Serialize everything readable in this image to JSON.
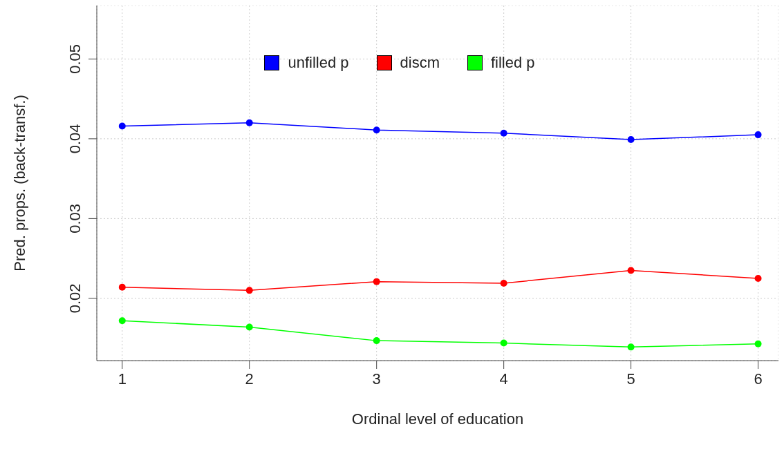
{
  "chart_data": {
    "type": "line",
    "xlabel": "Ordinal level of education",
    "ylabel": "Pred. props. (back-transf.)",
    "x": [
      1,
      2,
      3,
      4,
      5,
      6
    ],
    "xlim": [
      0.8,
      6.16
    ],
    "xticks": [
      1,
      2,
      3,
      4,
      5,
      6
    ],
    "ylim": [
      0.0122,
      0.0567
    ],
    "yticks": [
      0.02,
      0.03,
      0.04,
      0.05
    ],
    "grid": true,
    "legend": "top",
    "marker": "circle",
    "line_style": "solid",
    "series": [
      {
        "name": "unfilled p",
        "color": "#0000ff",
        "values": [
          0.0416,
          0.042,
          0.0411,
          0.0407,
          0.0399,
          0.0405
        ]
      },
      {
        "name": "discm",
        "color": "#ff0000",
        "values": [
          0.0214,
          0.021,
          0.0221,
          0.0219,
          0.0235,
          0.0225
        ]
      },
      {
        "name": "filled p",
        "color": "#00ff00",
        "values": [
          0.0172,
          0.0164,
          0.0147,
          0.0144,
          0.0139,
          0.0143
        ]
      }
    ]
  }
}
